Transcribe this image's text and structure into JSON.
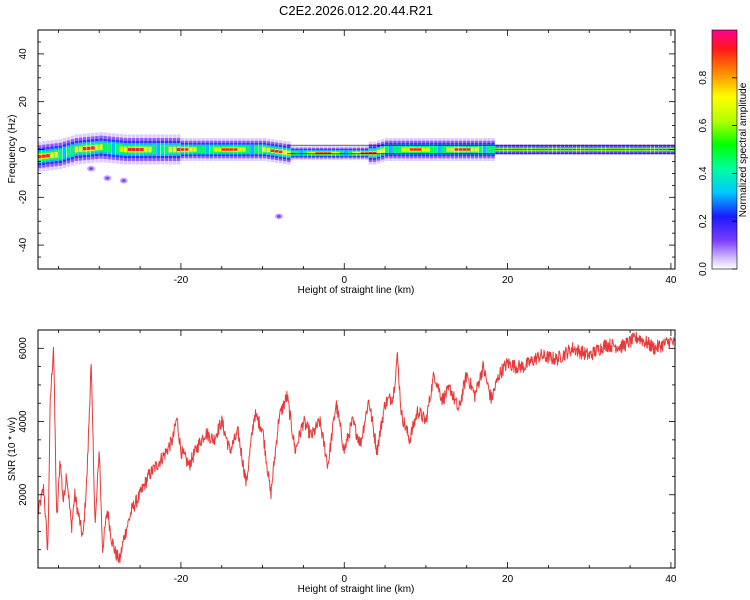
{
  "title": "C2E2.2026.012.20.44.R21",
  "chart_data": [
    {
      "type": "heatmap",
      "xlabel": "Height of straight line (km)",
      "ylabel": "Frequency (Hz)",
      "xlim": [
        -37.5,
        40.5
      ],
      "ylim": [
        -50,
        50
      ],
      "xticks": [
        -20,
        0,
        20,
        40
      ],
      "yticks": [
        -40,
        -20,
        0,
        20,
        40
      ],
      "colorbar": {
        "label": "Normalized spectral amplitude",
        "range": [
          0,
          1
        ],
        "ticks": [
          "0.0",
          "0.2",
          "0.4",
          "0.6",
          "0.8"
        ]
      },
      "band": {
        "center_frequency": [
          [
            -37.5,
            -3
          ],
          [
            -35,
            -2
          ],
          [
            -33,
            0
          ],
          [
            -30,
            1
          ],
          [
            -27,
            0
          ],
          [
            -24,
            0
          ],
          [
            -20,
            0
          ],
          [
            -15,
            0
          ],
          [
            -10,
            0
          ],
          [
            -7,
            -1.5
          ],
          [
            0,
            -1.5
          ],
          [
            3.5,
            -1.5
          ],
          [
            5,
            0
          ],
          [
            10,
            0
          ],
          [
            15,
            0
          ],
          [
            20,
            0
          ],
          [
            30,
            0
          ],
          [
            40.5,
            0
          ]
        ],
        "peak_amplitude_notes": "strongest (red) from x=18 to 40.5 at 0 Hz; weaker structured band from -35 to 18",
        "outlier_points": [
          [
            -27,
            -13
          ],
          [
            -29,
            -12
          ],
          [
            -8,
            -28
          ],
          [
            -31,
            -8
          ]
        ]
      }
    },
    {
      "type": "line",
      "xlabel": "Height of straight line (km)",
      "ylabel": "SNR (10 * v/v)",
      "xlim": [
        -37.5,
        40.5
      ],
      "ylim": [
        0,
        6500
      ],
      "xticks": [
        -20,
        0,
        20,
        40
      ],
      "yticks": [
        2000,
        4000,
        6000
      ],
      "color": "#e83a3a",
      "series": [
        {
          "name": "SNR",
          "x": [
            -37.5,
            -36.8,
            -36.3,
            -36.0,
            -35.6,
            -35.2,
            -34.8,
            -34.4,
            -34.0,
            -33.4,
            -33.0,
            -32.5,
            -32.0,
            -31.5,
            -31.0,
            -30.5,
            -30.0,
            -29.6,
            -29.0,
            -28.5,
            -28.0,
            -27.5,
            -27.0,
            -26.0,
            -25.0,
            -24.0,
            -23.0,
            -22.0,
            -21.0,
            -20.5,
            -20.0,
            -19.0,
            -18.0,
            -17.0,
            -16.0,
            -15.0,
            -14.0,
            -13.0,
            -12.0,
            -11.0,
            -10.0,
            -9.0,
            -8.0,
            -7.0,
            -6.0,
            -5.0,
            -4.0,
            -3.0,
            -2.0,
            -1.0,
            0.0,
            1.0,
            2.0,
            3.0,
            4.0,
            5.0,
            6.0,
            6.5,
            7.0,
            8.0,
            9.0,
            10.0,
            11.0,
            12.0,
            13.0,
            14.0,
            15.0,
            16.0,
            17.0,
            18.0,
            19.0,
            20.0,
            21.0,
            22.0,
            24.0,
            26.0,
            28.0,
            30.0,
            32.0,
            34.0,
            36.0,
            38.0,
            40.0,
            40.5
          ],
          "values": [
            1500,
            2200,
            400,
            4500,
            6100,
            1200,
            3000,
            1800,
            2600,
            1100,
            2000,
            1400,
            800,
            2500,
            5600,
            1100,
            3300,
            500,
            1600,
            800,
            400,
            200,
            800,
            1600,
            2000,
            2500,
            2800,
            3100,
            3500,
            4100,
            3200,
            2800,
            3300,
            3700,
            3500,
            4000,
            3200,
            3700,
            2300,
            4200,
            3800,
            2000,
            4100,
            4700,
            3200,
            4000,
            3600,
            4000,
            2800,
            4500,
            3200,
            4000,
            3400,
            4600,
            3200,
            4500,
            4700,
            5800,
            4200,
            3500,
            4300,
            4000,
            5300,
            4600,
            4900,
            4300,
            5300,
            4700,
            5500,
            4600,
            5300,
            5600,
            5500,
            5500,
            5800,
            5700,
            6000,
            5800,
            6100,
            6050,
            6300,
            6000,
            6200,
            6100
          ]
        }
      ]
    }
  ]
}
